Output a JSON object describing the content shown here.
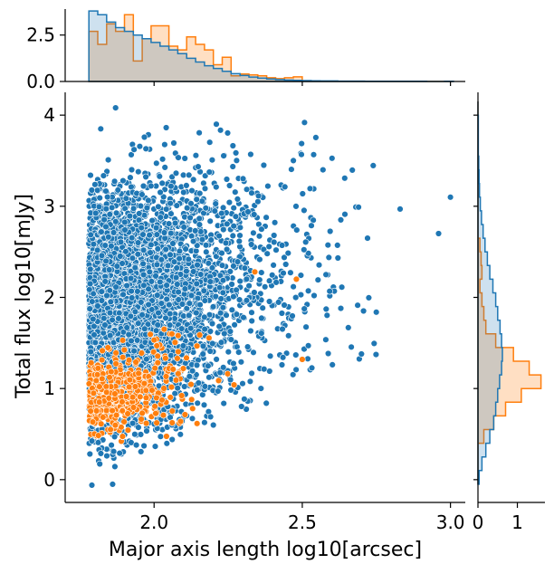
{
  "chart_data": {
    "type": "scatter",
    "subtype": "jointplot",
    "xlabel": "Major axis length log10[arcsec]",
    "ylabel": "Total flux log10[mJy]",
    "xlim": [
      1.7,
      3.05
    ],
    "ylim": [
      -0.25,
      4.25
    ],
    "x_ticks": [
      {
        "value": 2.0,
        "label": "2.0"
      },
      {
        "value": 2.5,
        "label": "2.5"
      },
      {
        "value": 3.0,
        "label": "3.0"
      }
    ],
    "y_ticks": [
      {
        "value": 0,
        "label": "0"
      },
      {
        "value": 1,
        "label": "1"
      },
      {
        "value": 2,
        "label": "2"
      },
      {
        "value": 3,
        "label": "3"
      },
      {
        "value": 4,
        "label": "4"
      }
    ],
    "grid": false,
    "legend": "none",
    "colors": {
      "blue": "#1f77b4",
      "orange": "#ff7f0e",
      "blue_fill": "#c6d8ea",
      "orange_fill": "#fcdcc0",
      "overlap": "#c8c5bf"
    },
    "series": [
      {
        "color": "#1f77b4",
        "count_approx": 6000,
        "distribution": "wedge-shaped cloud: x from 1.78 to ~2.6 (dense near 1.78-2.0), y from 0 to 4.1 centred near 1.8",
        "notable_points": [
          {
            "x": 1.87,
            "y": 4.08
          },
          {
            "x": 2.21,
            "y": 3.9
          },
          {
            "x": 1.82,
            "y": 3.85
          },
          {
            "x": 2.37,
            "y": 3.45
          },
          {
            "x": 2.57,
            "y": 3.4
          },
          {
            "x": 2.69,
            "y": 2.99
          },
          {
            "x": 2.83,
            "y": 2.97
          },
          {
            "x": 3.0,
            "y": 3.1
          },
          {
            "x": 2.96,
            "y": 2.7
          },
          {
            "x": 2.72,
            "y": 2.65
          },
          {
            "x": 2.63,
            "y": 2.85
          },
          {
            "x": 2.58,
            "y": 2.25
          },
          {
            "x": 2.54,
            "y": 2.02
          },
          {
            "x": 1.86,
            "y": -0.05
          },
          {
            "x": 1.79,
            "y": -0.06
          },
          {
            "x": 1.94,
            "y": 0.38
          },
          {
            "x": 2.06,
            "y": 0.6
          }
        ]
      },
      {
        "color": "#ff7f0e",
        "count_approx": 420,
        "distribution": "cluster at x 1.78-2.25, y 0.4-1.6, centred near (1.9, 0.95)",
        "notable_points": [
          {
            "x": 2.34,
            "y": 2.28
          },
          {
            "x": 2.48,
            "y": 2.2
          },
          {
            "x": 2.5,
            "y": 1.32
          },
          {
            "x": 2.27,
            "y": 1.04
          },
          {
            "x": 2.13,
            "y": 0.78
          },
          {
            "x": 2.06,
            "y": 1.6
          }
        ]
      }
    ],
    "marginal_x": {
      "ylim": [
        0,
        3.9
      ],
      "y_ticks": [
        {
          "value": 0,
          "label": "0.0"
        },
        {
          "value": 2.5,
          "label": "2.5"
        }
      ],
      "bin_edges": [
        1.78,
        1.81,
        1.84,
        1.87,
        1.9,
        1.93,
        1.96,
        1.99,
        2.02,
        2.05,
        2.08,
        2.11,
        2.14,
        2.17,
        2.2,
        2.23,
        2.26,
        2.29,
        2.32,
        2.35,
        2.38,
        2.41,
        2.44,
        2.47,
        2.5,
        2.53,
        2.56,
        2.59,
        2.62,
        2.65,
        2.68,
        2.71,
        2.74,
        2.77,
        2.8,
        2.83,
        2.86,
        2.89,
        2.92,
        2.95,
        2.98,
        3.01
      ],
      "blue_density": [
        3.8,
        3.6,
        3.2,
        2.9,
        2.7,
        2.5,
        2.3,
        2.1,
        1.9,
        1.7,
        1.5,
        1.25,
        1.05,
        0.85,
        0.7,
        0.55,
        0.42,
        0.32,
        0.24,
        0.18,
        0.13,
        0.1,
        0.08,
        0.06,
        0.05,
        0.04,
        0.03,
        0.03,
        0.02,
        0.02,
        0.02,
        0.01,
        0.01,
        0.01,
        0.01,
        0.01,
        0.01,
        0.01,
        0.0,
        0.0,
        0.01
      ],
      "orange_density": [
        2.7,
        2.0,
        3.1,
        2.7,
        3.6,
        1.1,
        2.3,
        3.0,
        3.0,
        1.9,
        1.7,
        2.4,
        2.0,
        1.7,
        0.9,
        1.3,
        0.3,
        0.4,
        0.35,
        0.3,
        0.2,
        0.15,
        0.2,
        0.25,
        0.0,
        0.0,
        0.0,
        0.0,
        0.0,
        0.0,
        0.0,
        0.0,
        0.0,
        0.0,
        0.0,
        0.0,
        0.0,
        0.0,
        0.0,
        0.0,
        0.0
      ]
    },
    "marginal_y": {
      "xlim": [
        0,
        1.7
      ],
      "x_ticks": [
        {
          "value": 0,
          "label": "0"
        },
        {
          "value": 1,
          "label": "1"
        }
      ],
      "bin_edges": [
        -0.05,
        0.1,
        0.25,
        0.4,
        0.55,
        0.7,
        0.85,
        1.0,
        1.15,
        1.3,
        1.45,
        1.6,
        1.75,
        1.9,
        2.05,
        2.2,
        2.35,
        2.5,
        2.65,
        2.8,
        2.95,
        3.1,
        3.25,
        3.4,
        3.55,
        3.7,
        3.85,
        4.0,
        4.15
      ],
      "blue_density": [
        0.03,
        0.1,
        0.2,
        0.3,
        0.4,
        0.45,
        0.5,
        0.55,
        0.6,
        0.62,
        0.6,
        0.56,
        0.5,
        0.45,
        0.38,
        0.3,
        0.24,
        0.18,
        0.13,
        0.09,
        0.06,
        0.04,
        0.03,
        0.02,
        0.01,
        0.01,
        0.01,
        0.0
      ],
      "orange_density": [
        0.0,
        0.0,
        0.0,
        0.15,
        0.4,
        0.7,
        1.1,
        1.6,
        1.3,
        0.9,
        0.45,
        0.2,
        0.15,
        0.1,
        0.05,
        0.1,
        0.08,
        0.05,
        0.0,
        0.0,
        0.0,
        0.0,
        0.0,
        0.0,
        0.0,
        0.0,
        0.0,
        0.0
      ]
    }
  }
}
